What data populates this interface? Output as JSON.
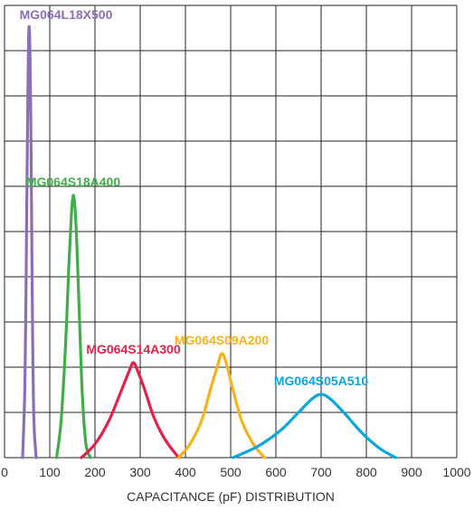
{
  "chart_data": {
    "type": "line",
    "xlabel": "CAPACITANCE (pF) DISTRIBUTION",
    "ylabel": "",
    "xlim": [
      0,
      1000
    ],
    "ylim": [
      0,
      10
    ],
    "x_ticks": [
      "0",
      "100",
      "200",
      "300",
      "400",
      "500",
      "600",
      "700",
      "800",
      "900",
      "1000"
    ],
    "grid": true,
    "series": [
      {
        "name": "MG064L18X500",
        "color": "#8a6fb5",
        "x": [
          40,
          45,
          48,
          50,
          52,
          54,
          56,
          58,
          60,
          62,
          65,
          70
        ],
        "y": [
          0,
          1.6,
          4.2,
          6.4,
          8.4,
          9.5,
          9.1,
          7.6,
          5.2,
          2.8,
          0.8,
          0
        ]
      },
      {
        "name": "MG064S18A400",
        "color": "#3fae49",
        "x": [
          115,
          125,
          135,
          142,
          148,
          152,
          156,
          160,
          166,
          172,
          180,
          190
        ],
        "y": [
          0,
          0.8,
          2.5,
          4.2,
          5.4,
          5.8,
          5.5,
          4.7,
          3.0,
          1.4,
          0.3,
          0
        ]
      },
      {
        "name": "MG064S14A300",
        "color": "#e1234b",
        "x": [
          170,
          200,
          230,
          255,
          275,
          285,
          295,
          310,
          330,
          355,
          385
        ],
        "y": [
          0,
          0.3,
          0.8,
          1.4,
          1.9,
          2.1,
          1.9,
          1.5,
          0.9,
          0.4,
          0
        ]
      },
      {
        "name": "MG064S09A200",
        "color": "#f6b21c",
        "x": [
          385,
          410,
          435,
          455,
          470,
          480,
          490,
          505,
          525,
          550,
          575
        ],
        "y": [
          0,
          0.3,
          0.8,
          1.5,
          2.0,
          2.3,
          2.1,
          1.5,
          0.8,
          0.3,
          0
        ]
      },
      {
        "name": "MG064S05A510",
        "color": "#0aa5dc",
        "x": [
          505,
          560,
          610,
          650,
          680,
          700,
          720,
          750,
          790,
          830,
          865
        ],
        "y": [
          0,
          0.25,
          0.6,
          1.0,
          1.3,
          1.4,
          1.3,
          1.0,
          0.55,
          0.2,
          0
        ]
      }
    ]
  }
}
